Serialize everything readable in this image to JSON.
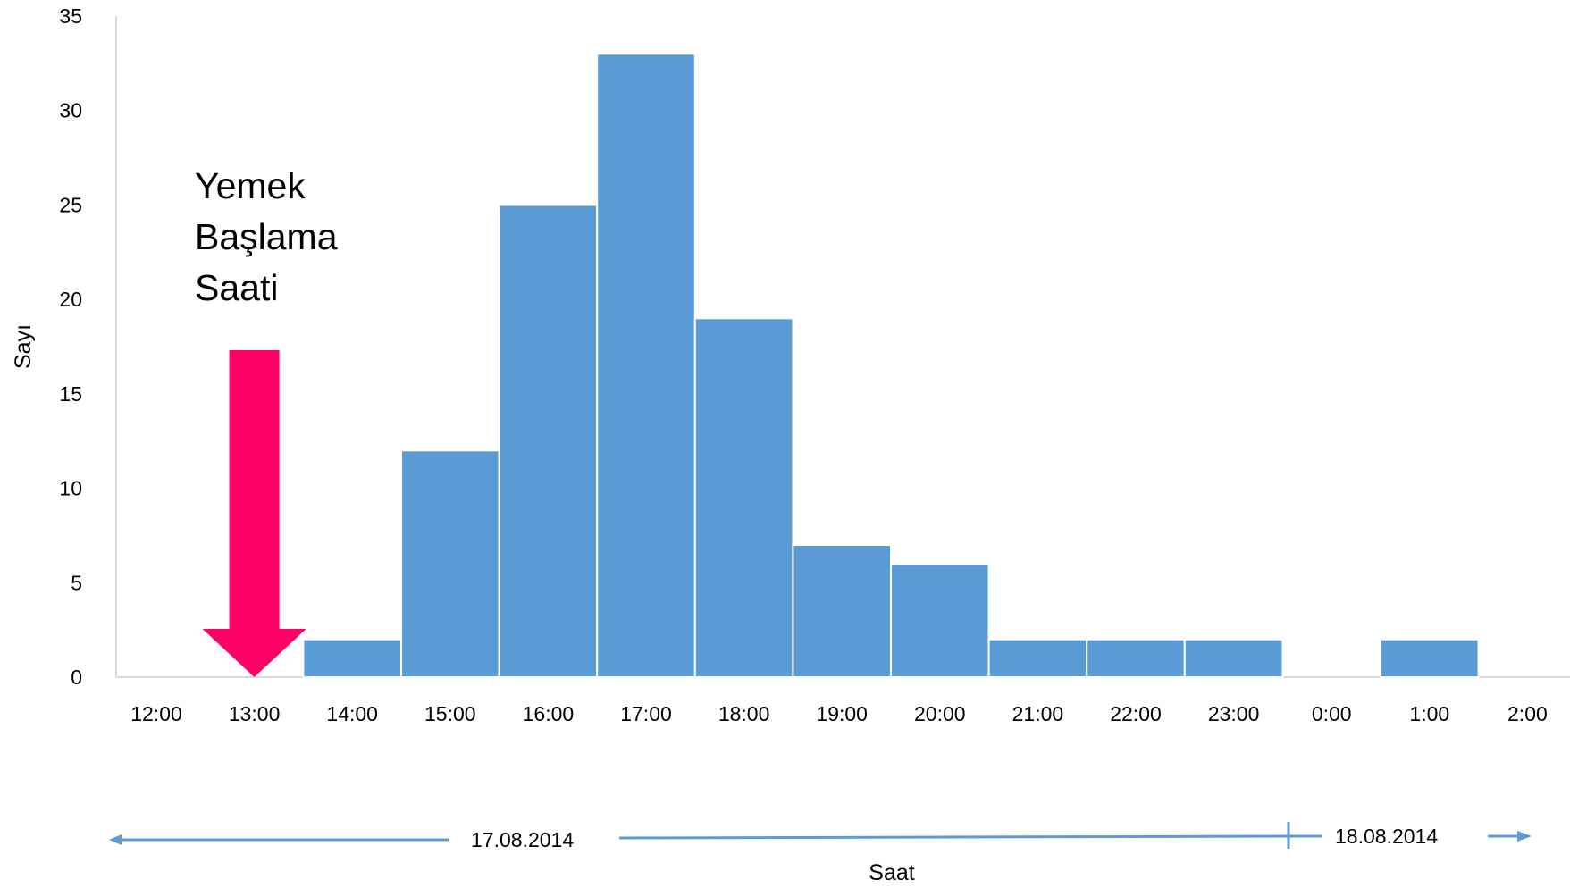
{
  "chart_data": {
    "type": "bar",
    "title": "",
    "xlabel": "Saat",
    "ylabel": "Sayı",
    "ylim": [
      0,
      35
    ],
    "yticks": [
      "0",
      "5",
      "10",
      "15",
      "20",
      "25",
      "30",
      "35"
    ],
    "xticks": [
      "12:00",
      "13:00",
      "14:00",
      "15:00",
      "16:00",
      "17:00",
      "18:00",
      "19:00",
      "20:00",
      "21:00",
      "22:00",
      "23:00",
      "0:00",
      "1:00",
      "2:00"
    ],
    "bins": [
      {
        "start": "13:30",
        "end": "14:30",
        "value": 2
      },
      {
        "start": "14:30",
        "end": "15:30",
        "value": 12
      },
      {
        "start": "15:30",
        "end": "16:30",
        "value": 25
      },
      {
        "start": "16:30",
        "end": "17:30",
        "value": 33
      },
      {
        "start": "17:30",
        "end": "18:30",
        "value": 19
      },
      {
        "start": "18:30",
        "end": "19:30",
        "value": 7
      },
      {
        "start": "19:30",
        "end": "20:30",
        "value": 6
      },
      {
        "start": "20:30",
        "end": "21:30",
        "value": 2
      },
      {
        "start": "21:30",
        "end": "22:30",
        "value": 2
      },
      {
        "start": "22:30",
        "end": "23:30",
        "value": 2
      },
      {
        "start": "0:30",
        "end": "1:30",
        "value": 2
      }
    ],
    "bar_color": "#5b9bd5",
    "grid": false,
    "annotation": {
      "lines": [
        "Yemek",
        "Başlama",
        "Saati"
      ],
      "time": "13:00",
      "arrow_color": "#ff0066"
    },
    "date_labels": [
      {
        "text": "17.08.2014"
      },
      {
        "text": "18.08.2014"
      }
    ],
    "date_arrow_color": "#5b9bd5"
  }
}
